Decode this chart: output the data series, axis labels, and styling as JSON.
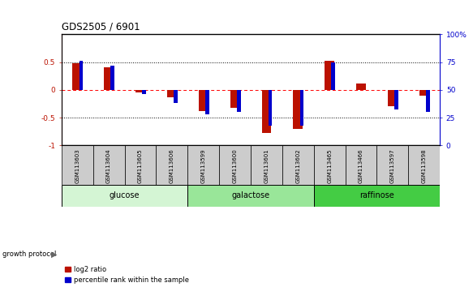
{
  "title": "GDS2505 / 6901",
  "samples": [
    "GSM113603",
    "GSM113604",
    "GSM113605",
    "GSM113606",
    "GSM113599",
    "GSM113600",
    "GSM113601",
    "GSM113602",
    "GSM113465",
    "GSM113466",
    "GSM113597",
    "GSM113598"
  ],
  "log2_ratio": [
    0.48,
    0.4,
    -0.04,
    -0.14,
    -0.38,
    -0.33,
    -0.78,
    -0.7,
    0.53,
    0.12,
    -0.3,
    -0.1
  ],
  "percentile_rank": [
    76,
    72,
    46,
    38,
    28,
    30,
    18,
    18,
    75,
    50,
    32,
    30
  ],
  "groups": [
    {
      "label": "glucose",
      "start": 0,
      "end": 4,
      "color": "#d4f5d4"
    },
    {
      "label": "galactose",
      "start": 4,
      "end": 8,
      "color": "#99e699"
    },
    {
      "label": "raffinose",
      "start": 8,
      "end": 12,
      "color": "#44cc44"
    }
  ],
  "ylim_left": [
    -1,
    1
  ],
  "ylim_right": [
    0,
    100
  ],
  "yticks_left": [
    -1,
    -0.5,
    0,
    0.5
  ],
  "ytick_labels_left": [
    "-1",
    "-0.5",
    "0",
    "0.5"
  ],
  "yticks_right": [
    0,
    25,
    50,
    75,
    100
  ],
  "ytick_labels_right": [
    "0",
    "25",
    "50",
    "75",
    "100%"
  ],
  "red_color": "#bb1100",
  "blue_color": "#0000cc",
  "dotted_lines": [
    -0.5,
    0,
    0.5
  ],
  "bg_color": "#ffffff",
  "legend_items": [
    "log2 ratio",
    "percentile rank within the sample"
  ],
  "bar_width": 0.3,
  "blue_bar_width": 0.12
}
